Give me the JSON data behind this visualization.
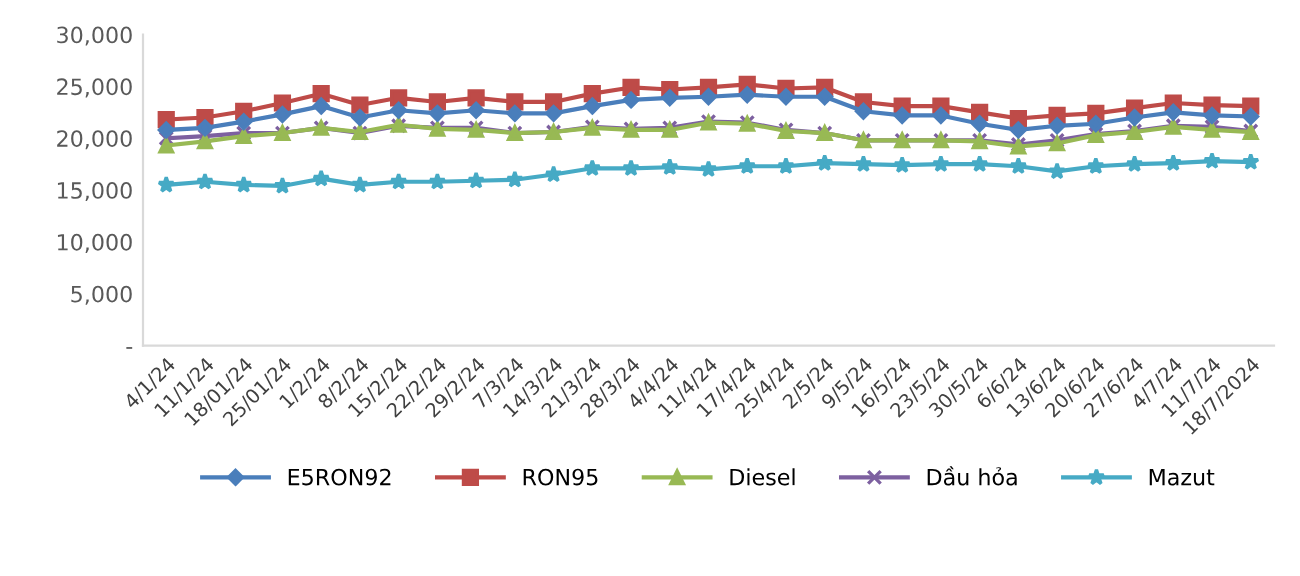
{
  "chart_data": {
    "type": "line",
    "categories": [
      "4/1/24",
      "11/1/24",
      "18/01/24",
      "25/01/24",
      "1/2/24",
      "8/2/24",
      "15/2/24",
      "22/2/24",
      "29/2/24",
      "7/3/24",
      "14/3/24",
      "21/3/24",
      "28/3/24",
      "4/4/24",
      "11/4/24",
      "17/4/24",
      "25/4/24",
      "2/5/24",
      "9/5/24",
      "16/5/24",
      "23/5/24",
      "30/5/24",
      "6/6/24",
      "13/6/24",
      "20/6/24",
      "27/6/24",
      "4/7/24",
      "11/7/24",
      "18/7/2024"
    ],
    "series": [
      {
        "name": "E5RON92",
        "color": "#4a7ebb",
        "marker": "diamond",
        "values": [
          20800,
          21000,
          21600,
          22300,
          23100,
          22000,
          22700,
          22400,
          22700,
          22400,
          22400,
          23100,
          23700,
          23900,
          24000,
          24200,
          24000,
          24000,
          22600,
          22200,
          22200,
          21400,
          20800,
          21200,
          21400,
          22000,
          22500,
          22200,
          22100
        ]
      },
      {
        "name": "RON95",
        "color": "#be4b48",
        "marker": "square",
        "values": [
          21800,
          22000,
          22600,
          23400,
          24300,
          23200,
          23900,
          23500,
          23900,
          23500,
          23500,
          24300,
          24900,
          24700,
          24900,
          25200,
          24800,
          24900,
          23500,
          23100,
          23100,
          22500,
          21900,
          22200,
          22400,
          22900,
          23400,
          23200,
          23100
        ]
      },
      {
        "name": "Diesel",
        "color": "#98b954",
        "marker": "triangle",
        "values": [
          19300,
          19700,
          20200,
          20500,
          21000,
          20600,
          21300,
          20900,
          20800,
          20500,
          20600,
          21000,
          20800,
          20800,
          21500,
          21400,
          20700,
          20500,
          19800,
          19800,
          19800,
          19700,
          19200,
          19500,
          20300,
          20600,
          21100,
          20800,
          20600
        ]
      },
      {
        "name": "Dầu hỏa",
        "color": "#7d60a0",
        "marker": "cross",
        "values": [
          20000,
          20200,
          20500,
          20500,
          21000,
          20500,
          21200,
          21000,
          21000,
          20500,
          20600,
          21100,
          20900,
          21000,
          21600,
          21500,
          20800,
          20500,
          19800,
          19800,
          19800,
          19800,
          19400,
          19800,
          20400,
          20700,
          21200,
          21100,
          20700
        ]
      },
      {
        "name": "Mazut",
        "color": "#46aac5",
        "marker": "star",
        "values": [
          15500,
          15800,
          15500,
          15400,
          16100,
          15500,
          15800,
          15800,
          15900,
          16000,
          16500,
          17100,
          17100,
          17200,
          17000,
          17300,
          17300,
          17600,
          17500,
          17400,
          17500,
          17500,
          17300,
          16800,
          17300,
          17500,
          17600,
          17800,
          17700
        ]
      }
    ],
    "ylim": [
      0,
      30000
    ],
    "yticks": [
      {
        "value": 0,
        "label": "-"
      },
      {
        "value": 5000,
        "label": "5,000"
      },
      {
        "value": 10000,
        "label": "10,000"
      },
      {
        "value": 15000,
        "label": "15,000"
      },
      {
        "value": 20000,
        "label": "20,000"
      },
      {
        "value": 25000,
        "label": "25,000"
      },
      {
        "value": 30000,
        "label": "30,000"
      }
    ],
    "grid": false,
    "legend": "bottom",
    "line_style": "solid"
  }
}
